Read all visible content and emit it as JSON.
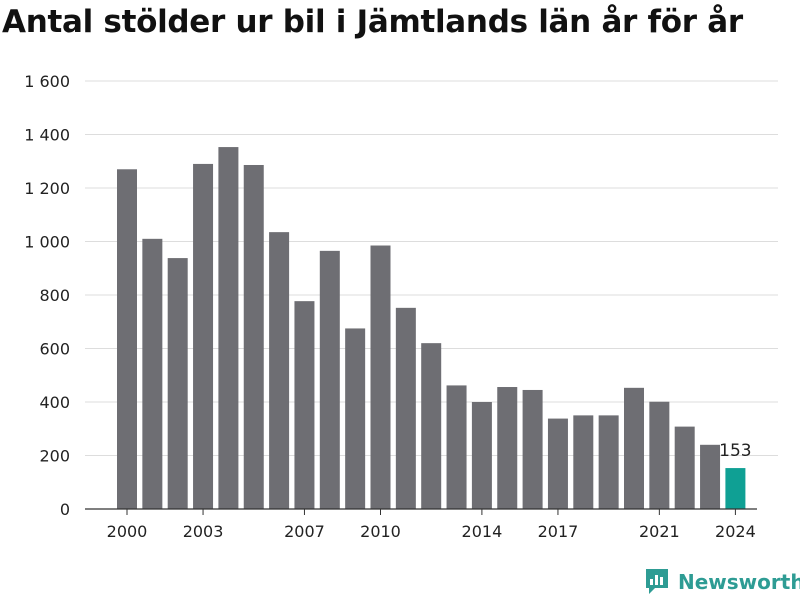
{
  "chart_data": {
    "type": "bar",
    "title": "Antal stölder ur bil i Jämtlands län år för år",
    "xlabel": "",
    "ylabel": "",
    "categories": [
      "2000",
      "2001",
      "2002",
      "2003",
      "2004",
      "2005",
      "2006",
      "2007",
      "2008",
      "2009",
      "2010",
      "2011",
      "2012",
      "2013",
      "2014",
      "2015",
      "2016",
      "2017",
      "2018",
      "2019",
      "2020",
      "2021",
      "2022",
      "2023",
      "2024"
    ],
    "values": [
      1270,
      1010,
      938,
      1290,
      1353,
      1286,
      1035,
      777,
      965,
      675,
      985,
      752,
      620,
      462,
      400,
      456,
      445,
      338,
      350,
      350,
      453,
      401,
      308,
      240,
      153
    ],
    "ylim": [
      0,
      1600
    ],
    "yticks": [
      0,
      200,
      400,
      600,
      800,
      1000,
      1200,
      1400,
      1600
    ],
    "ytick_labels": [
      "0",
      "200",
      "400",
      "600",
      "800",
      "1 000",
      "1 200",
      "1 400",
      "1 600"
    ],
    "xtick_labels": [
      "2000",
      "2003",
      "2007",
      "2010",
      "2014",
      "2017",
      "2021",
      "2024"
    ],
    "highlight_category": "2024",
    "data_label": "153",
    "grid": true,
    "colors": {
      "bar": "#6e6e73",
      "highlight": "#0fa094",
      "grid": "#dddddd",
      "axis": "#333333"
    }
  },
  "branding": {
    "name": "Newsworthy",
    "icon": "newsworthy-logo-icon",
    "color": "#2e9c94"
  }
}
